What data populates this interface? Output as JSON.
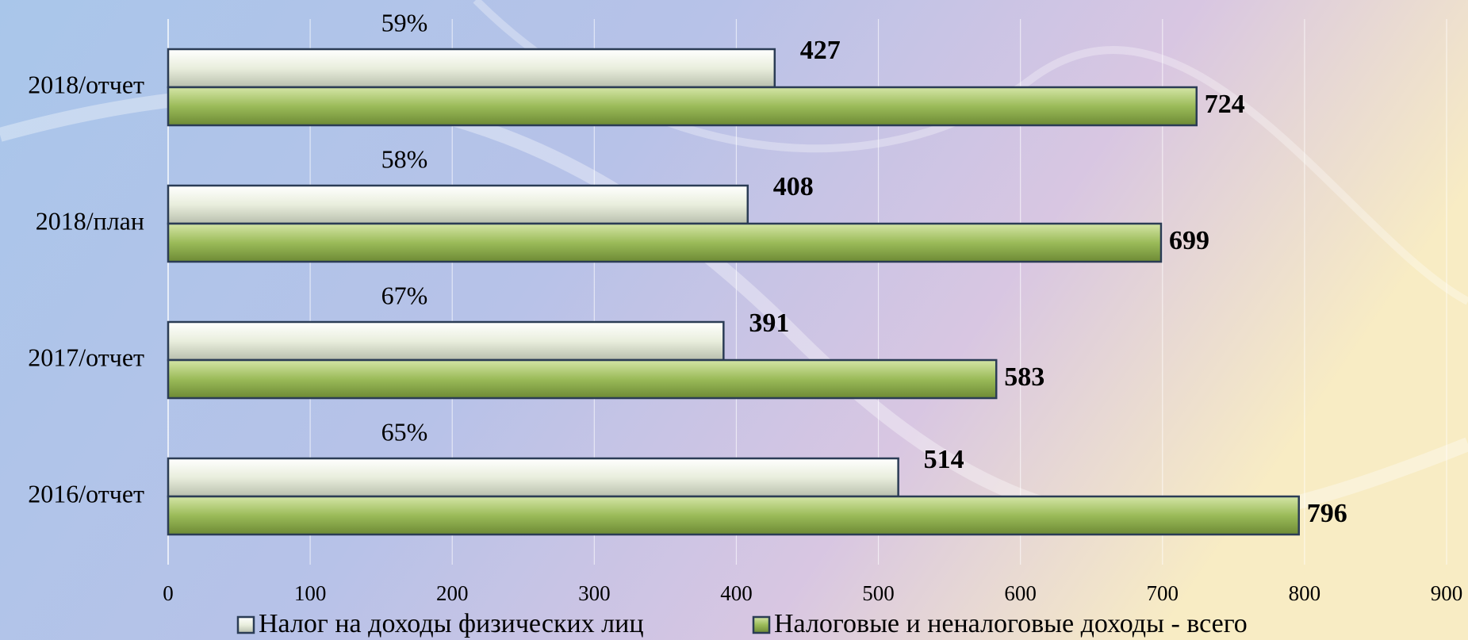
{
  "chart_data": {
    "type": "bar",
    "orientation": "horizontal",
    "categories": [
      "2018/отчет",
      "2018/план",
      "2017/отчет",
      "2016/отчет"
    ],
    "series": [
      {
        "name": "Налог на доходы физических лиц",
        "color": "#e9eedd",
        "values": [
          427,
          408,
          391,
          514
        ]
      },
      {
        "name": "Налоговые и неналоговые доходы - всего",
        "color": "#9bbb59",
        "values": [
          724,
          699,
          583,
          796
        ]
      }
    ],
    "annotations": [
      "59%",
      "58%",
      "67%",
      "65%"
    ],
    "xlim": [
      0,
      900
    ],
    "xticks": [
      0,
      100,
      200,
      300,
      400,
      500,
      600,
      700,
      800,
      900
    ],
    "grid": true,
    "legend": "bottom"
  }
}
